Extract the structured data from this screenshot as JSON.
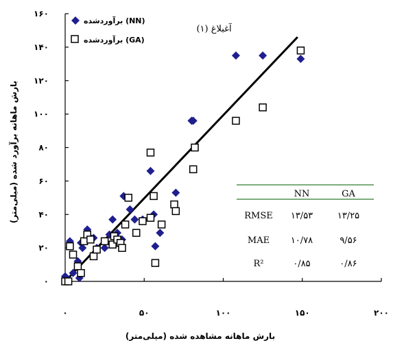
{
  "chart_data": {
    "type": "scatter",
    "title": "",
    "xlabel": "بارش ماهانه مشاهده شده (میلی‌متر)",
    "ylabel": "بارش ماهانه برآورد شده (میلی‌متر)",
    "xlim": [
      0,
      200
    ],
    "ylim": [
      0,
      160
    ],
    "x_ticks": [
      0,
      50,
      100,
      150,
      200
    ],
    "y_ticks": [
      0,
      20,
      40,
      60,
      80,
      100,
      120,
      140,
      160
    ],
    "x_tick_labels": [
      "۰",
      "۵۰",
      "۱۰۰",
      "۱۵۰",
      "۲۰۰"
    ],
    "y_tick_labels": [
      "۰",
      "۲۰",
      "۴۰",
      "۶۰",
      "۸۰",
      "۱۰۰",
      "۱۲۰",
      "۱۴۰",
      "۱۶۰"
    ],
    "annotation": "آغبلاغ (۱)",
    "legend_position": "top-left",
    "series": [
      {
        "name": "برآوردشده (NN)",
        "marker": "diamond",
        "color": "#1f1f8f",
        "points": [
          [
            0,
            3
          ],
          [
            2,
            1
          ],
          [
            3,
            24
          ],
          [
            5,
            5
          ],
          [
            8,
            12
          ],
          [
            9,
            2
          ],
          [
            10,
            23
          ],
          [
            11,
            20
          ],
          [
            14,
            31
          ],
          [
            15,
            27
          ],
          [
            18,
            26
          ],
          [
            20,
            20
          ],
          [
            25,
            20
          ],
          [
            28,
            28
          ],
          [
            30,
            37
          ],
          [
            33,
            29
          ],
          [
            36,
            25
          ],
          [
            37,
            51
          ],
          [
            40,
            50
          ],
          [
            41,
            43
          ],
          [
            44,
            37
          ],
          [
            49,
            37
          ],
          [
            54,
            66
          ],
          [
            56,
            40
          ],
          [
            57,
            21
          ],
          [
            60,
            29
          ],
          [
            70,
            53
          ],
          [
            80,
            96
          ],
          [
            81,
            96
          ],
          [
            108,
            135
          ],
          [
            125,
            135
          ],
          [
            149,
            133
          ]
        ]
      },
      {
        "name": "برآوردشده (GA)",
        "marker": "square",
        "color": "#000000",
        "points": [
          [
            0,
            0
          ],
          [
            2,
            0
          ],
          [
            3,
            21
          ],
          [
            5,
            16
          ],
          [
            8,
            9
          ],
          [
            10,
            5
          ],
          [
            12,
            24
          ],
          [
            14,
            28
          ],
          [
            16,
            25
          ],
          [
            18,
            15
          ],
          [
            20,
            19
          ],
          [
            25,
            24
          ],
          [
            30,
            22
          ],
          [
            31,
            27
          ],
          [
            33,
            25
          ],
          [
            35,
            23
          ],
          [
            36,
            20
          ],
          [
            38,
            34
          ],
          [
            40,
            50
          ],
          [
            45,
            29
          ],
          [
            49,
            36
          ],
          [
            54,
            38
          ],
          [
            54,
            77
          ],
          [
            56,
            51
          ],
          [
            57,
            11
          ],
          [
            61,
            34
          ],
          [
            69,
            46
          ],
          [
            70,
            42
          ],
          [
            81,
            67
          ],
          [
            82,
            80
          ],
          [
            108,
            96
          ],
          [
            125,
            104
          ],
          [
            149,
            138
          ]
        ]
      }
    ],
    "fit_line": {
      "x": [
        0,
        147
      ],
      "y": [
        0,
        146
      ]
    },
    "table": {
      "columns": [
        "",
        "NN",
        "GA"
      ],
      "rows": [
        {
          "label": "RMSE",
          "NN": "۱۳/۵۳",
          "GA": "۱۳/۲۵"
        },
        {
          "label": "MAE",
          "NN": "۱۰/۷۸",
          "GA": "۹/۵۶"
        },
        {
          "label": "R²",
          "NN": "۰/۸۵",
          "GA": "۰/۸۶"
        }
      ],
      "rule_color": "#2f7a2f"
    }
  }
}
